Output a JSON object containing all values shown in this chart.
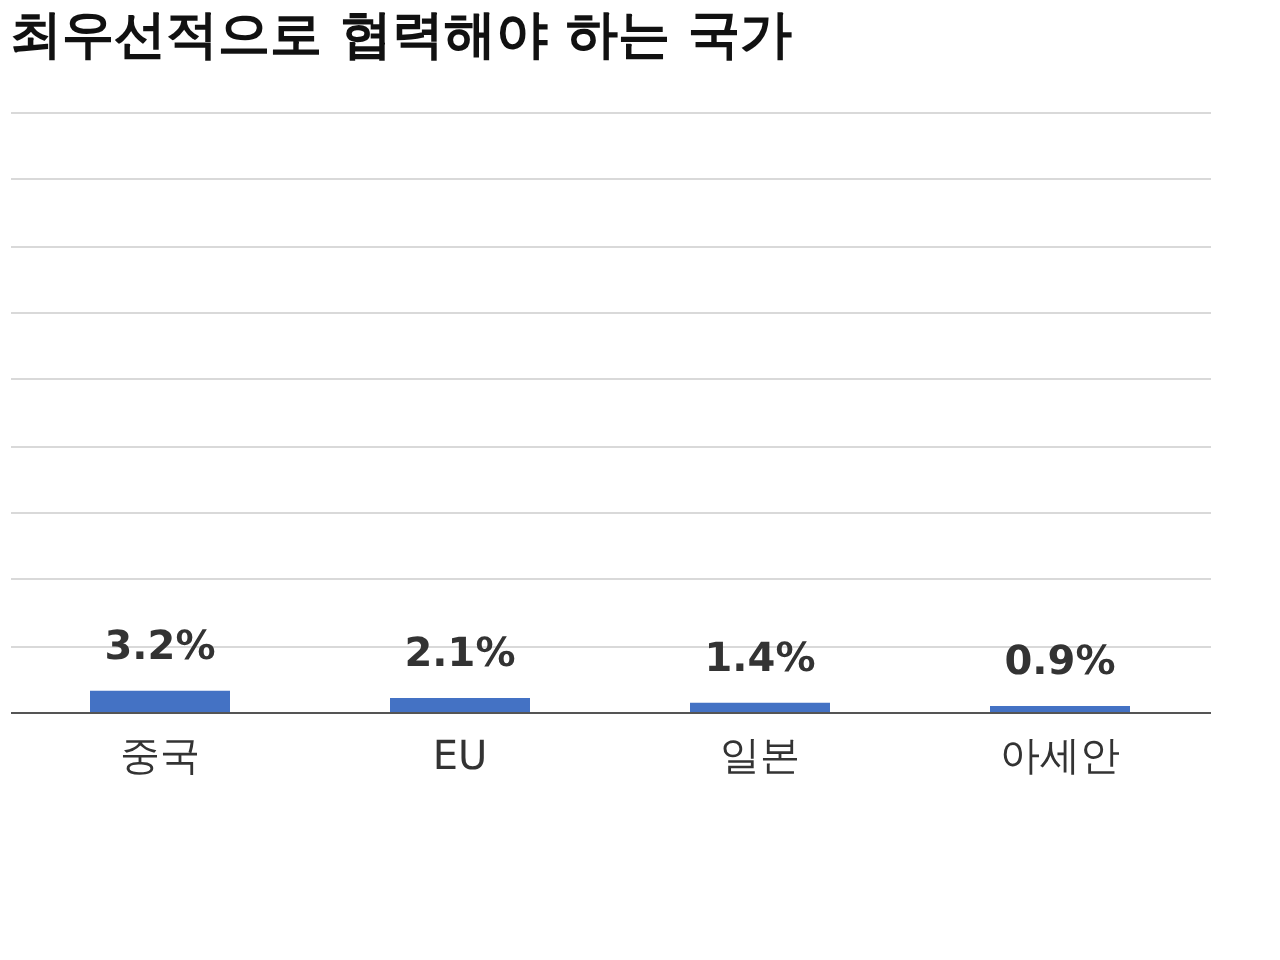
{
  "chart_data": {
    "type": "bar",
    "title": "최우선적으로 협력해야 하는 국가",
    "categories": [
      "중국",
      "EU",
      "일본",
      "아세안"
    ],
    "values": [
      3.2,
      2.1,
      1.4,
      0.9
    ],
    "value_labels": [
      "3.2%",
      "2.1%",
      "1.4%",
      "0.9%"
    ],
    "color": "#4472c4",
    "grid": "y",
    "ylim": [
      0,
      90
    ],
    "yticks": [
      {
        "value": 0,
        "label": null
      },
      {
        "value": 10,
        "label": null
      },
      {
        "value": 20,
        "label": null
      },
      {
        "value": 30,
        "label": null
      },
      {
        "value": 40,
        "label": null
      },
      {
        "value": 50,
        "label": null
      },
      {
        "value": 60,
        "label": null
      },
      {
        "value": 70,
        "label": null
      },
      {
        "value": 80,
        "label": null
      },
      {
        "value": 90,
        "label": null
      }
    ],
    "tick_labels": "x"
  }
}
